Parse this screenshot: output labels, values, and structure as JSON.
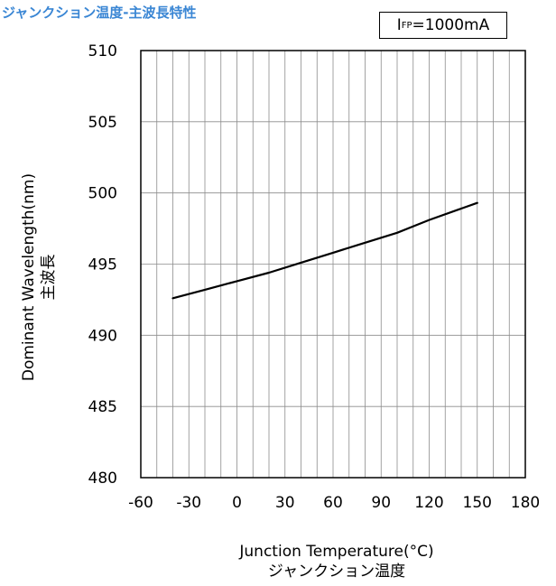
{
  "title": "ジャンクション温度-主波長特性",
  "condition": {
    "main": "I",
    "sub": "FP",
    "rest": "=1000mA"
  },
  "chart_data": {
    "type": "line",
    "xlabel": "Junction Temperature(°C)",
    "xlabel_jp": "ジャンクション温度",
    "ylabel": "Dominant Wavelength(nm)",
    "ylabel_jp": "主波長",
    "xlim": [
      -60,
      180
    ],
    "ylim": [
      480,
      510
    ],
    "x_ticks": [
      -60,
      -30,
      0,
      30,
      60,
      90,
      120,
      150,
      180
    ],
    "y_ticks": [
      480,
      485,
      490,
      495,
      500,
      505,
      510
    ],
    "x_minor_step": 10,
    "grid": true,
    "series": [
      {
        "x": [
          -40,
          -20,
          0,
          20,
          40,
          60,
          80,
          100,
          120,
          140,
          150
        ],
        "values": [
          492.6,
          493.2,
          493.8,
          494.4,
          495.1,
          495.8,
          496.5,
          497.2,
          498.1,
          498.9,
          499.3
        ]
      }
    ]
  }
}
